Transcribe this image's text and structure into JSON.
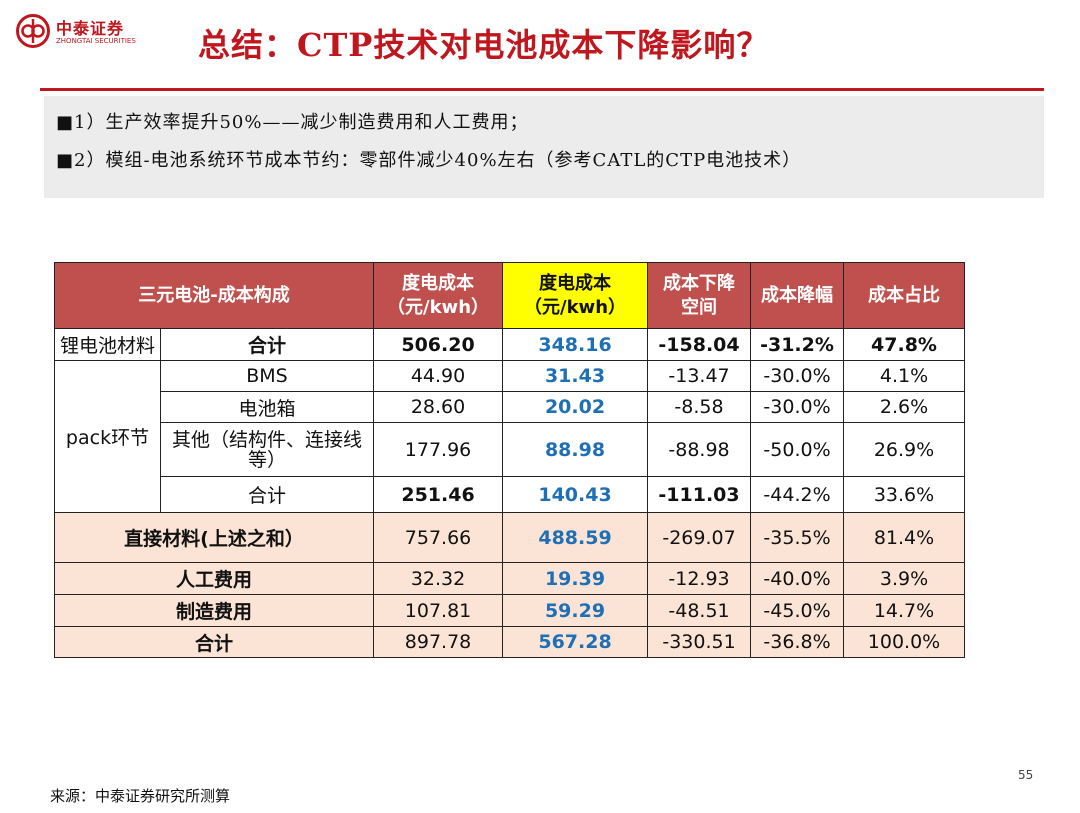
{
  "brand": {
    "name_cn": "中泰证券",
    "name_en": "ZHONGTAI SECURITIES",
    "color": "#c0161d"
  },
  "title": "总结：CTP技术对电池成本下降影响？",
  "notes": [
    "■1）生产效率提升50%——减少制造费用和人工费用；",
    "■2）模组-电池系统环节成本节约：零部件减少40%左右（参考CATL的CTP电池技术）"
  ],
  "table": {
    "headers": {
      "composition": "三元电池-成本构成",
      "cost_before": "度电成本\n（元/kwh）",
      "cost_after": "度电成本\n（元/kwh）",
      "reduction_space": "成本下降\n空间",
      "reduction_rate": "成本降幅",
      "share": "成本占比"
    },
    "rows": [
      {
        "group": "锂电池材料",
        "item": "合计",
        "before": "506.20",
        "after": "348.16",
        "space": "-158.04",
        "rate": "-31.2%",
        "share": "47.8%"
      },
      {
        "group": "pack环节",
        "item": "BMS",
        "before": "44.90",
        "after": "31.43",
        "space": "-13.47",
        "rate": "-30.0%",
        "share": "4.1%"
      },
      {
        "item": "电池箱",
        "before": "28.60",
        "after": "20.02",
        "space": "-8.58",
        "rate": "-30.0%",
        "share": "2.6%"
      },
      {
        "item": "其他（结构件、连接线等）",
        "before": "177.96",
        "after": "88.98",
        "space": "-88.98",
        "rate": "-50.0%",
        "share": "26.9%"
      },
      {
        "item": "合计",
        "before": "251.46",
        "after": "140.43",
        "space": "-111.03",
        "rate": "-44.2%",
        "share": "33.6%"
      },
      {
        "item": "直接材料(上述之和）",
        "before": "757.66",
        "after": "488.59",
        "space": "-269.07",
        "rate": "-35.5%",
        "share": "81.4%"
      },
      {
        "item": "人工费用",
        "before": "32.32",
        "after": "19.39",
        "space": "-12.93",
        "rate": "-40.0%",
        "share": "3.9%"
      },
      {
        "item": "制造费用",
        "before": "107.81",
        "after": "59.29",
        "space": "-48.51",
        "rate": "-45.0%",
        "share": "14.7%"
      },
      {
        "item": "合计",
        "before": "897.78",
        "after": "567.28",
        "space": "-330.51",
        "rate": "-36.8%",
        "share": "100.0%"
      }
    ],
    "colors": {
      "header_bg": "#c0504d",
      "highlight_header_bg": "#ffff00",
      "summary_row_bg": "#fbe4d5",
      "after_value_color": "#1f6fb5"
    }
  },
  "source": "来源：中泰证券研究所测算",
  "page_number": "55"
}
